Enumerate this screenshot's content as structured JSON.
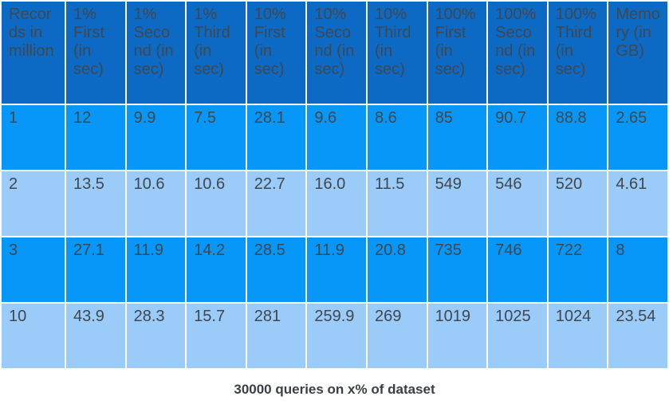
{
  "caption": "30000 queries on x% of dataset",
  "colors": {
    "header_bg": "#0c6ac4",
    "row_odd_bg": "#0697f8",
    "row_even_bg": "#9bcbf8",
    "cell_text": "#40474e",
    "caption_text": "#3a3f45",
    "page_bg": "#ffffff",
    "grid": "#ffffff"
  },
  "chart_data": {
    "type": "table",
    "title": "30000 queries on x% of dataset",
    "columns": [
      "Records in million",
      "1% First (in sec)",
      "1% Second (in sec)",
      "1% Third (in sec)",
      "10% First (in sec)",
      "10% Second (in sec)",
      "10% Third (in sec)",
      "100% First (in sec)",
      "100% Second (in sec)",
      "100% Third (in sec)",
      "Memory (in GB)"
    ],
    "rows": [
      [
        "1",
        "12",
        "9.9",
        "7.5",
        "28.1",
        "9.6",
        "8.6",
        "85",
        "90.7",
        "88.8",
        "2.65"
      ],
      [
        "2",
        "13.5",
        "10.6",
        "10.6",
        "22.7",
        "16.0",
        "11.5",
        "549",
        "546",
        "520",
        "4.61"
      ],
      [
        "3",
        "27.1",
        "11.9",
        "14.2",
        "28.5",
        "11.9",
        "20.8",
        "735",
        "746",
        "722",
        "8"
      ],
      [
        "10",
        "43.9",
        "28.3",
        "15.7",
        "281",
        "259.9",
        "269",
        "1019",
        "1025",
        "1024",
        "23.54"
      ]
    ],
    "layout": {
      "header_position": "top",
      "row_striping": "odd-bright-blue, even-light-blue",
      "caption_position": "below-table-centered"
    }
  }
}
